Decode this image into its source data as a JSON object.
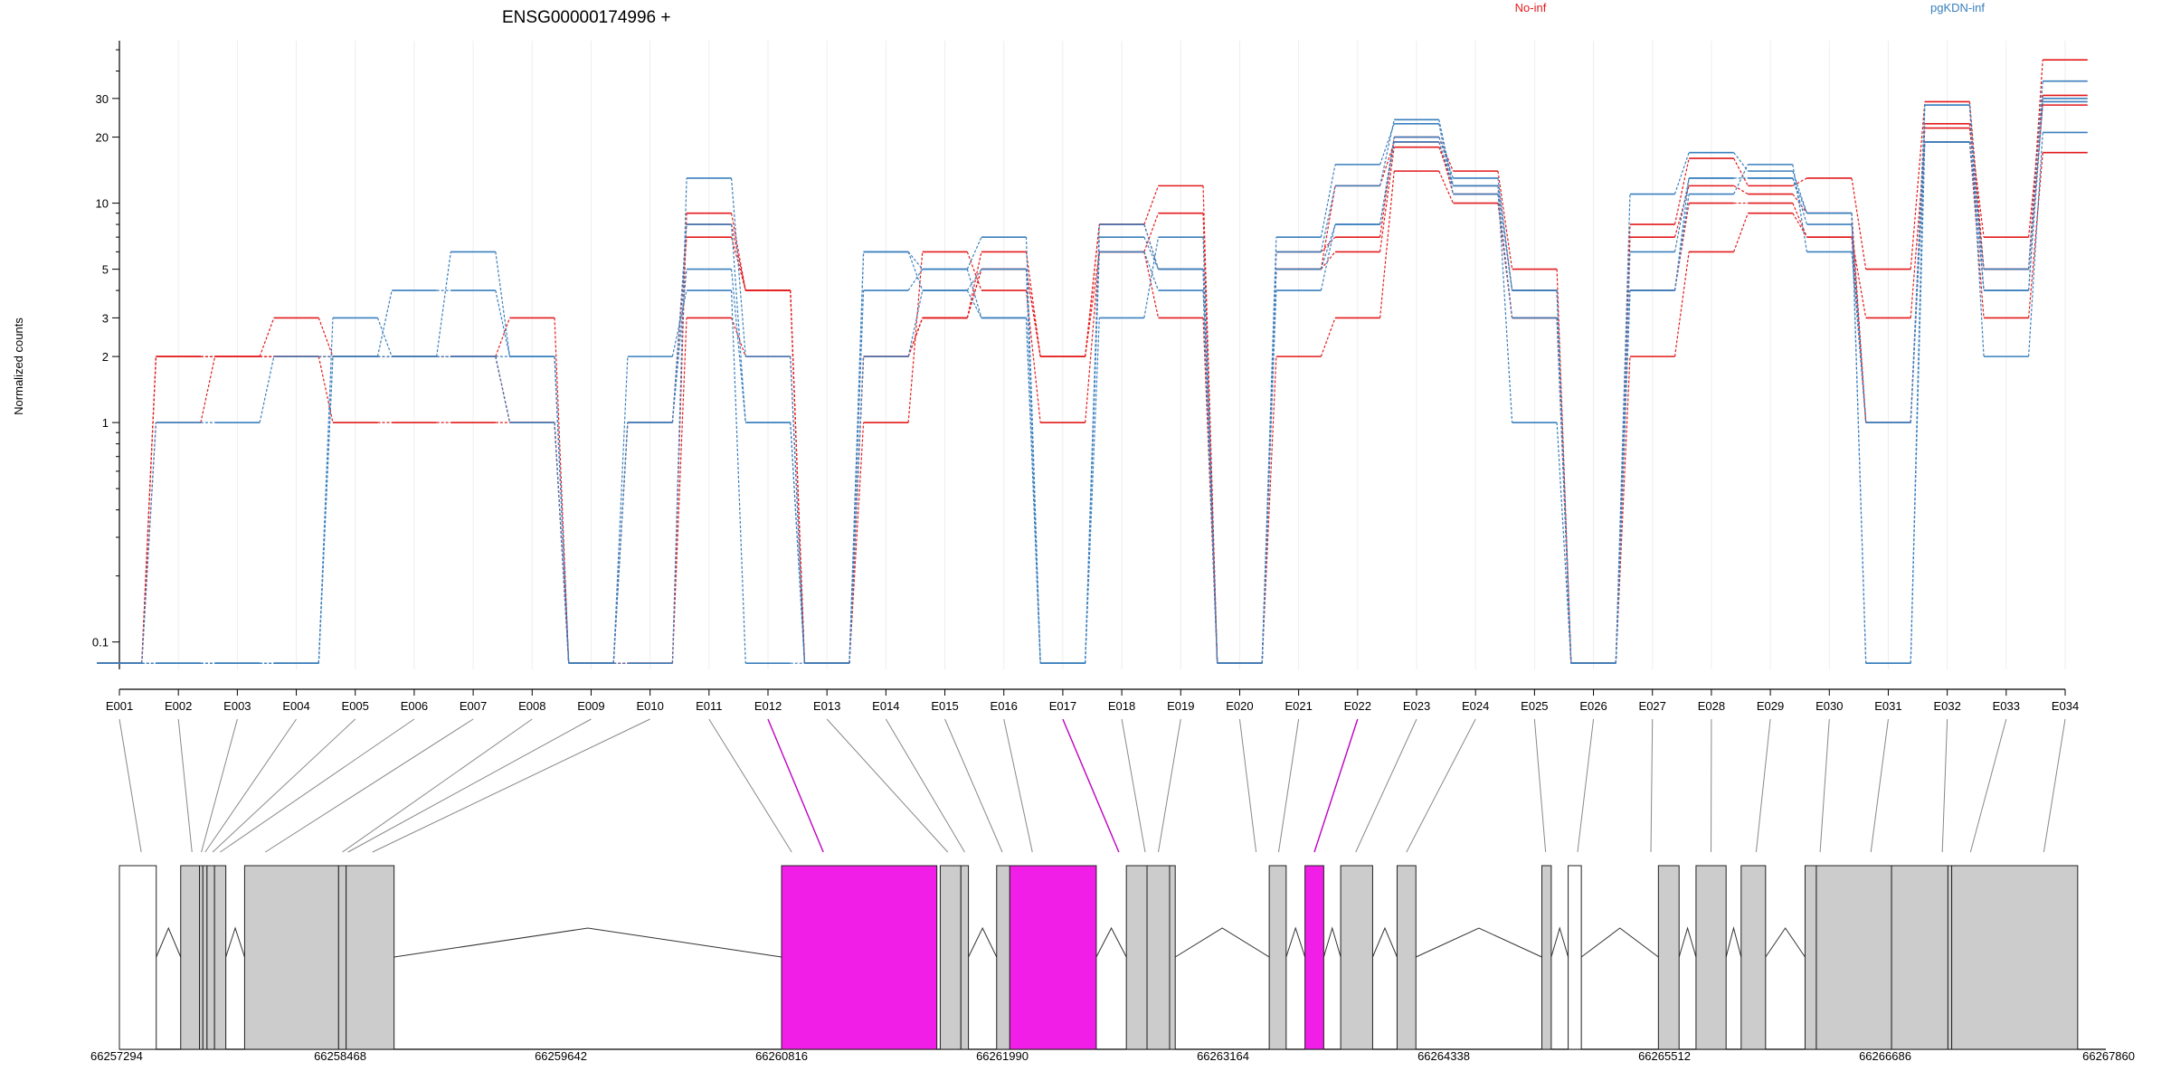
{
  "chart_data": {
    "type": "line",
    "title": "ENSG00000174996 +",
    "ylabel": "Normalized counts",
    "xlabel": "",
    "y_scale": "log",
    "y_tick_labels": [
      "0.1",
      "1",
      "2",
      "3",
      "5",
      "10",
      "20",
      "30"
    ],
    "y_tick_values": [
      0.1,
      1,
      2,
      3,
      5,
      10,
      20,
      30
    ],
    "ylim": [
      0.075,
      55
    ],
    "grid": "vertical-light",
    "legend": [
      {
        "name": "No-inf",
        "color": "#e31a1c",
        "placement": "top"
      },
      {
        "name": "pgKDN-inf",
        "color": "#3a7fbd",
        "placement": "top-right"
      }
    ],
    "categories": [
      "E001",
      "E002",
      "E003",
      "E004",
      "E005",
      "E006",
      "E007",
      "E008",
      "E009",
      "E010",
      "E011",
      "E012",
      "E013",
      "E014",
      "E015",
      "E016",
      "E017",
      "E018",
      "E019",
      "E020",
      "E021",
      "E022",
      "E023",
      "E024",
      "E025",
      "E026",
      "E027",
      "E028",
      "E029",
      "E030",
      "E031",
      "E032",
      "E033",
      "E034"
    ],
    "highlighted_exons": [
      "E012",
      "E017",
      "E022"
    ],
    "series": [
      {
        "group": "No-inf",
        "values": [
          0.08,
          2,
          2,
          3,
          2,
          2,
          2,
          3,
          0.08,
          0.08,
          9,
          4,
          0.08,
          2,
          3,
          6,
          2,
          8,
          12,
          0.08,
          6,
          7,
          20,
          14,
          5,
          0.08,
          8,
          16,
          12,
          13,
          5,
          29,
          5,
          45
        ]
      },
      {
        "group": "No-inf",
        "values": [
          0.08,
          1,
          2,
          2,
          1,
          1,
          1,
          1,
          0.08,
          1,
          7,
          4,
          0.08,
          1,
          6,
          4,
          1,
          6,
          9,
          0.08,
          5,
          6,
          18,
          12,
          4,
          0.08,
          7,
          12,
          11,
          9,
          1,
          23,
          7,
          31
        ]
      },
      {
        "group": "No-inf",
        "values": [
          0.08,
          2,
          2,
          2,
          2,
          2,
          2,
          1,
          0.08,
          0.08,
          3,
          2,
          0.08,
          2,
          3,
          5,
          2,
          8,
          5,
          0.08,
          2,
          3,
          14,
          10,
          3,
          0.08,
          2,
          6,
          9,
          7,
          3,
          19,
          3,
          17
        ]
      },
      {
        "group": "No-inf",
        "values": [
          0.08,
          2,
          2,
          2,
          2,
          2,
          2,
          1,
          0.08,
          1,
          8,
          4,
          0.08,
          2,
          3,
          5,
          2,
          6,
          3,
          0.08,
          5,
          12,
          19,
          11,
          3,
          0.08,
          4,
          10,
          10,
          7,
          1,
          22,
          5,
          28
        ]
      },
      {
        "group": "pgKDN-inf",
        "values": [
          0.08,
          1,
          1,
          2,
          2,
          4,
          4,
          2,
          0.08,
          1,
          5,
          1,
          0.08,
          6,
          5,
          7,
          0.08,
          7,
          5,
          0.08,
          6,
          12,
          24,
          12,
          1,
          0.08,
          11,
          17,
          14,
          9,
          0.08,
          28,
          2,
          21
        ]
      },
      {
        "group": "pgKDN-inf",
        "values": [
          0.08,
          0.08,
          0.08,
          0.08,
          2,
          2,
          2,
          2,
          0.08,
          0.08,
          13,
          2,
          0.08,
          6,
          4,
          5,
          0.08,
          6,
          4,
          0.08,
          7,
          15,
          23,
          11,
          3,
          0.08,
          6,
          13,
          13,
          8,
          1,
          28,
          4,
          30
        ]
      },
      {
        "group": "pgKDN-inf",
        "values": [
          0.08,
          0.08,
          0.08,
          0.08,
          2,
          2,
          6,
          2,
          0.08,
          1,
          8,
          1,
          0.08,
          2,
          4,
          3,
          0.08,
          3,
          7,
          0.08,
          5,
          8,
          20,
          13,
          4,
          0.08,
          4,
          11,
          15,
          6,
          1,
          19,
          4,
          29
        ]
      },
      {
        "group": "pgKDN-inf",
        "values": [
          0.08,
          0.08,
          0.08,
          0.08,
          3,
          2,
          2,
          1,
          0.08,
          2,
          4,
          0.08,
          0.08,
          4,
          5,
          3,
          0.08,
          8,
          5,
          0.08,
          4,
          8,
          19,
          12,
          4,
          0.08,
          4,
          13,
          13,
          9,
          0.08,
          19,
          5,
          36
        ]
      }
    ],
    "gene_model": {
      "coordinate_labels": [
        "66257294",
        "66258468",
        "66259642",
        "66260816",
        "66261990",
        "66263164",
        "66264338",
        "66265512",
        "66266686",
        "66267860"
      ],
      "coordinate_values": [
        66257294,
        66258468,
        66259642,
        66260816,
        66261990,
        66263164,
        66264338,
        66265512,
        66266686,
        66267860
      ],
      "exon_colors": {
        "normal": "#cccccc",
        "highlighted": "#f01ee6",
        "untested": "#ffffff"
      },
      "blocks": [
        {
          "start": 66257294,
          "end": 66257490,
          "kind": "untested"
        },
        {
          "start": 66257620,
          "end": 66257720,
          "kind": "normal"
        },
        {
          "start": 66257720,
          "end": 66257738,
          "kind": "normal"
        },
        {
          "start": 66257738,
          "end": 66257760,
          "kind": "normal"
        },
        {
          "start": 66257760,
          "end": 66257800,
          "kind": "normal"
        },
        {
          "start": 66257800,
          "end": 66257860,
          "kind": "normal"
        },
        {
          "start": 66257960,
          "end": 66258460,
          "kind": "normal"
        },
        {
          "start": 66258460,
          "end": 66258500,
          "kind": "normal"
        },
        {
          "start": 66258500,
          "end": 66258755,
          "kind": "normal"
        },
        {
          "start": 66260816,
          "end": 66261642,
          "kind": "highlighted"
        },
        {
          "start": 66261660,
          "end": 66261770,
          "kind": "normal"
        },
        {
          "start": 66261770,
          "end": 66261810,
          "kind": "normal"
        },
        {
          "start": 66261960,
          "end": 66262030,
          "kind": "normal"
        },
        {
          "start": 66262030,
          "end": 66262490,
          "kind": "highlighted"
        },
        {
          "start": 66262650,
          "end": 66262760,
          "kind": "normal"
        },
        {
          "start": 66262760,
          "end": 66262880,
          "kind": "normal"
        },
        {
          "start": 66262880,
          "end": 66262910,
          "kind": "normal"
        },
        {
          "start": 66263410,
          "end": 66263500,
          "kind": "normal"
        },
        {
          "start": 66263600,
          "end": 66263700,
          "kind": "highlighted"
        },
        {
          "start": 66263790,
          "end": 66263960,
          "kind": "normal"
        },
        {
          "start": 66264090,
          "end": 66264190,
          "kind": "normal"
        },
        {
          "start": 66264860,
          "end": 66264910,
          "kind": "normal"
        },
        {
          "start": 66265000,
          "end": 66265070,
          "kind": "untested"
        },
        {
          "start": 66265480,
          "end": 66265590,
          "kind": "normal"
        },
        {
          "start": 66265680,
          "end": 66265840,
          "kind": "normal"
        },
        {
          "start": 66265920,
          "end": 66266050,
          "kind": "normal"
        },
        {
          "start": 66266260,
          "end": 66266320,
          "kind": "normal"
        },
        {
          "start": 66266320,
          "end": 66266720,
          "kind": "normal"
        },
        {
          "start": 66266720,
          "end": 66267020,
          "kind": "normal"
        },
        {
          "start": 66267020,
          "end": 66267040,
          "kind": "normal"
        },
        {
          "start": 66267040,
          "end": 66267710,
          "kind": "normal"
        }
      ],
      "introns": [
        {
          "start": 66257490,
          "end": 66257620
        },
        {
          "start": 66257860,
          "end": 66257960
        },
        {
          "start": 66258755,
          "end": 66260816
        },
        {
          "start": 66261810,
          "end": 66261960
        },
        {
          "start": 66262490,
          "end": 66262650
        },
        {
          "start": 66262910,
          "end": 66263410
        },
        {
          "start": 66263500,
          "end": 66263600
        },
        {
          "start": 66263700,
          "end": 66263790
        },
        {
          "start": 66263960,
          "end": 66264090
        },
        {
          "start": 66264190,
          "end": 66264860
        },
        {
          "start": 66264910,
          "end": 66265000
        },
        {
          "start": 66265070,
          "end": 66265480
        },
        {
          "start": 66265590,
          "end": 66265680
        },
        {
          "start": 66265840,
          "end": 66265920
        },
        {
          "start": 66266050,
          "end": 66266260
        }
      ],
      "exon_positions": [
        66257410,
        66257680,
        66257730,
        66257750,
        66257790,
        66257830,
        66258070,
        66258480,
        66258510,
        66258640,
        66260870,
        66261038,
        66261700,
        66261790,
        66261990,
        66262150,
        66262610,
        66262750,
        66262820,
        66263340,
        66263460,
        66263650,
        66263870,
        66264140,
        66264880,
        66265050,
        66265440,
        66265760,
        66266000,
        66266340,
        66266610,
        66266990,
        66267140,
        66267530
      ]
    }
  }
}
